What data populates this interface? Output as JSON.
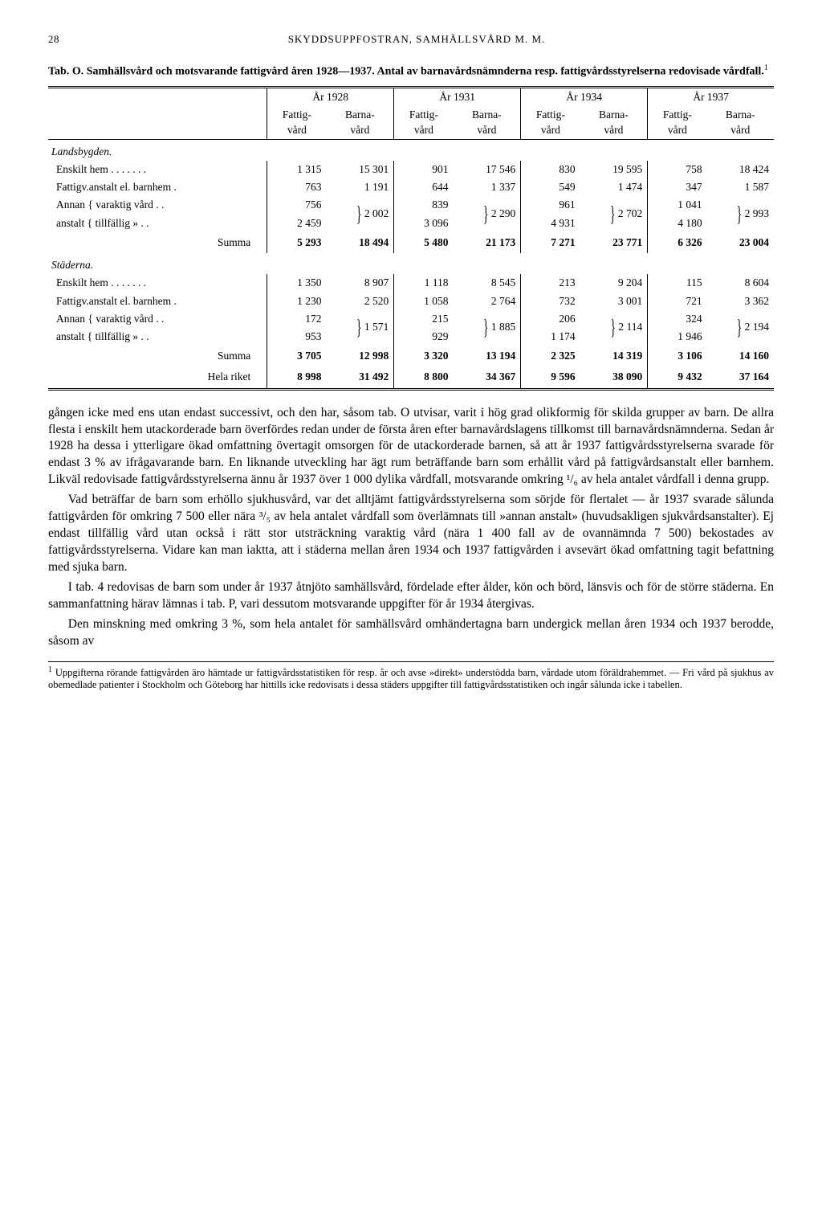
{
  "page_number": "28",
  "running_head": "SKYDDSUPPFOSTRAN, SAMHÄLLSVÅRD M. M.",
  "tab_prefix": "Tab. O.",
  "tab_title": "Samhällsvård och motsvarande fattigvård åren 1928—1937. Antal av barnavårdsnämnderna resp. fattigvårdsstyrelserna redovisade vårdfall.",
  "tab_sup": "1",
  "years": [
    "År 1928",
    "År 1931",
    "År 1934",
    "År 1937"
  ],
  "col_sub": [
    "Fattig-\nvård",
    "Barna-\nvård"
  ],
  "sections": {
    "landsbygden": {
      "label": "Landsbygden.",
      "rows": [
        {
          "label": "Enskilt hem . . . . . . .",
          "vals": [
            "1 315",
            "15 301",
            "901",
            "17 546",
            "830",
            "19 595",
            "758",
            "18 424"
          ]
        },
        {
          "label": "Fattigv.anstalt el. barnhem .",
          "vals": [
            "763",
            "1 191",
            "644",
            "1 337",
            "549",
            "1 474",
            "347",
            "1 587"
          ]
        },
        {
          "label": "Annan   { varaktig vård  . .",
          "vals": [
            "756",
            "",
            "839",
            "",
            "961",
            "",
            "1 041",
            ""
          ],
          "brace_a": true
        },
        {
          "label": "anstalt { tillfällig   »   . .",
          "vals": [
            "2 459",
            "2 002",
            "3 096",
            "2 290",
            "4 931",
            "2 702",
            "4 180",
            "2 993"
          ],
          "brace_b": true
        }
      ],
      "summa": {
        "label": "Summa",
        "vals": [
          "5 293",
          "18 494",
          "5 480",
          "21 173",
          "7 271",
          "23 771",
          "6 326",
          "23 004"
        ]
      }
    },
    "staderna": {
      "label": "Städerna.",
      "rows": [
        {
          "label": "Enskilt hem . . . . . . .",
          "vals": [
            "1 350",
            "8 907",
            "1 118",
            "8 545",
            "213",
            "9 204",
            "115",
            "8 604"
          ]
        },
        {
          "label": "Fattigv.anstalt el. barnhem .",
          "vals": [
            "1 230",
            "2 520",
            "1 058",
            "2 764",
            "732",
            "3 001",
            "721",
            "3 362"
          ]
        },
        {
          "label": "Annan   { varaktig vård  . .",
          "vals": [
            "172",
            "",
            "215",
            "",
            "206",
            "",
            "324",
            ""
          ],
          "brace_a": true
        },
        {
          "label": "anstalt { tillfällig   »   . .",
          "vals": [
            "953",
            "1 571",
            "929",
            "1 885",
            "1 174",
            "2 114",
            "1 946",
            "2 194"
          ],
          "brace_b": true
        }
      ],
      "summa": {
        "label": "Summa",
        "vals": [
          "3 705",
          "12 998",
          "3 320",
          "13 194",
          "2 325",
          "14 319",
          "3 106",
          "14 160"
        ]
      }
    },
    "hela": {
      "label": "Hela riket",
      "vals": [
        "8 998",
        "31 492",
        "8 800",
        "34 367",
        "9 596",
        "38 090",
        "9 432",
        "37 164"
      ]
    }
  },
  "paras": [
    "gången icke med ens utan endast successivt, och den har, såsom tab. O utvisar, varit i hög grad olikformig för skilda grupper av barn. De allra flesta i enskilt hem utackorderade barn överfördes redan under de första åren efter barnavårdslagens tillkomst till barnavårdsnämnderna. Sedan år 1928 ha dessa i ytterligare ökad omfattning övertagit omsorgen för de utackorderade barnen, så att år 1937 fattigvårdsstyrelserna svarade för endast 3 % av ifrågavarande barn. En liknande utveckling har ägt rum beträffande barn som erhållit vård på fattigvårdsanstalt eller barnhem. Likväl redovisade fattigvårdsstyrelserna ännu år 1937 över 1 000 dylika vårdfall, motsvarande omkring ¹/₆ av hela antalet vårdfall i denna grupp.",
    "Vad beträffar de barn som erhöllo sjukhusvård, var det alltjämt fattigvårdsstyrelserna som sörjde för flertalet — år 1937 svarade sålunda fattigvården för omkring 7 500 eller nära ³/₅ av hela antalet vårdfall som överlämnats till »annan anstalt» (huvudsakligen sjukvårdsanstalter). Ej endast tillfällig vård utan också i rätt stor utsträckning varaktig vård (nära 1 400 fall av de ovannämnda 7 500) bekostades av fattigvårdsstyrelserna. Vidare kan man iaktta, att i städerna mellan åren 1934 och 1937 fattigvården i avsevärt ökad omfattning tagit befattning med sjuka barn.",
    "I tab. 4 redovisas de barn som under år 1937 åtnjöto samhällsvård, fördelade efter ålder, kön och börd, länsvis och för de större städerna. En sammanfattning härav lämnas i tab. P, vari dessutom motsvarande uppgifter för år 1934 återgivas.",
    "Den minskning med omkring 3 %, som hela antalet för samhällsvård omhändertagna barn undergick mellan åren 1934 och 1937 berodde, såsom av"
  ],
  "footnote_sup": "1",
  "footnote": "Uppgifterna rörande fattigvården äro hämtade ur fattigvårdsstatistiken för resp. år och avse »direkt» understödda barn, vårdade utom föräldrahemmet. — Fri vård på sjukhus av obemedlade patienter i Stockholm och Göteborg har hittills icke redovisats i dessa städers uppgifter till fattigvårdsstatistiken och ingår sålunda icke i tabellen."
}
